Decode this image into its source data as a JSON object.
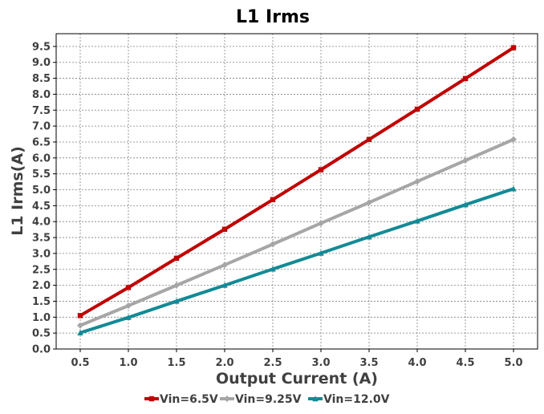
{
  "chart_data": {
    "type": "line",
    "title": "L1 Irms",
    "xlabel": "Output Current (A)",
    "ylabel": "L1 Irms(A)",
    "x": [
      0.5,
      1.0,
      1.5,
      2.0,
      2.5,
      3.0,
      3.5,
      4.0,
      4.5,
      5.0
    ],
    "x_tick_labels": [
      "0.5",
      "1.0",
      "1.5",
      "2.0",
      "2.5",
      "3.0",
      "3.5",
      "4.0",
      "4.5",
      "5.0"
    ],
    "y_tick_labels": [
      "0.0",
      "0.5",
      "1.0",
      "1.5",
      "2.0",
      "2.5",
      "3.0",
      "3.5",
      "4.0",
      "4.5",
      "5.0",
      "5.5",
      "6.0",
      "6.5",
      "7.0",
      "7.5",
      "8.0",
      "8.5",
      "9.0",
      "9.5"
    ],
    "xlim": [
      0.25,
      5.25
    ],
    "ylim": [
      0.0,
      9.9
    ],
    "grid": true,
    "legend_position": "bottom",
    "series": [
      {
        "name": "Vin=6.5V",
        "color": "#c00000",
        "marker": "square",
        "values": [
          1.05,
          1.93,
          2.85,
          3.76,
          4.69,
          5.63,
          6.58,
          7.53,
          8.49,
          9.46
        ]
      },
      {
        "name": "Vin=9.25V",
        "color": "#a6a6a6",
        "marker": "diamond",
        "values": [
          0.74,
          1.36,
          2.0,
          2.64,
          3.29,
          3.95,
          4.6,
          5.26,
          5.92,
          6.58
        ]
      },
      {
        "name": "Vin=12.0V",
        "color": "#138a96",
        "marker": "triangle",
        "values": [
          0.51,
          0.99,
          1.5,
          2.0,
          2.51,
          3.01,
          3.52,
          4.02,
          4.53,
          5.03
        ]
      }
    ]
  }
}
